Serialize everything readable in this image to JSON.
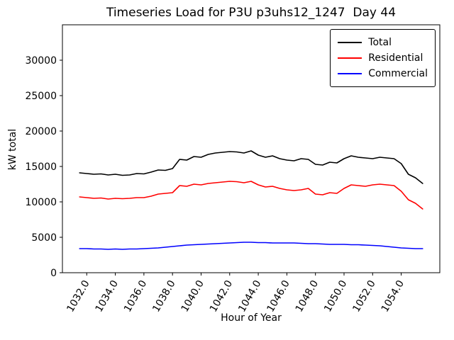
{
  "chart_data": {
    "type": "line",
    "title": "Timeseries Load for P3U p3uhs12_1247  Day 44",
    "xlabel": "Hour of Year",
    "ylabel": "kW total",
    "xlim": [
      1030.3,
      1056.7
    ],
    "ylim": [
      0,
      35000
    ],
    "grid": false,
    "legend_position": "upper right",
    "xtick_values": [
      1032,
      1034,
      1036,
      1038,
      1040,
      1042,
      1044,
      1046,
      1048,
      1050,
      1052,
      1054
    ],
    "xtick_labels": [
      "1032.0",
      "1034.0",
      "1036.0",
      "1038.0",
      "1040.0",
      "1042.0",
      "1044.0",
      "1046.0",
      "1048.0",
      "1050.0",
      "1052.0",
      "1054.0"
    ],
    "ytick_values": [
      0,
      5000,
      10000,
      15000,
      20000,
      25000,
      30000
    ],
    "ytick_labels": [
      "0",
      "5000",
      "10000",
      "15000",
      "20000",
      "25000",
      "30000"
    ],
    "x": [
      1031.5,
      1032.0,
      1032.5,
      1033.0,
      1033.5,
      1034.0,
      1034.5,
      1035.0,
      1035.5,
      1036.0,
      1036.5,
      1037.0,
      1037.5,
      1038.0,
      1038.5,
      1039.0,
      1039.5,
      1040.0,
      1040.5,
      1041.0,
      1041.5,
      1042.0,
      1042.5,
      1043.0,
      1043.5,
      1044.0,
      1044.5,
      1045.0,
      1045.5,
      1046.0,
      1046.5,
      1047.0,
      1047.5,
      1048.0,
      1048.5,
      1049.0,
      1049.5,
      1050.0,
      1050.5,
      1051.0,
      1051.5,
      1052.0,
      1052.5,
      1053.0,
      1053.5,
      1054.0,
      1054.5,
      1055.0,
      1055.5
    ],
    "series": [
      {
        "name": "Total",
        "color": "#000000",
        "values": [
          14100,
          14000,
          13900,
          13950,
          13800,
          13900,
          13750,
          13800,
          14000,
          13950,
          14200,
          14500,
          14450,
          14700,
          16000,
          15900,
          16400,
          16300,
          16700,
          16900,
          17000,
          17100,
          17050,
          16900,
          17200,
          16600,
          16300,
          16500,
          16100,
          15900,
          15800,
          16100,
          16000,
          15300,
          15200,
          15600,
          15500,
          16100,
          16500,
          16300,
          16200,
          16100,
          16300,
          16200,
          16100,
          15400,
          13900,
          13400,
          12600
        ]
      },
      {
        "name": "Residential",
        "color": "#ff0000",
        "values": [
          10700,
          10600,
          10500,
          10550,
          10400,
          10500,
          10450,
          10500,
          10600,
          10600,
          10800,
          11100,
          11200,
          11300,
          12300,
          12200,
          12500,
          12400,
          12600,
          12700,
          12800,
          12900,
          12850,
          12700,
          12900,
          12400,
          12100,
          12200,
          11900,
          11700,
          11600,
          11700,
          11900,
          11100,
          11000,
          11300,
          11200,
          11900,
          12400,
          12300,
          12200,
          12400,
          12500,
          12400,
          12300,
          11500,
          10300,
          9800,
          9000
        ]
      },
      {
        "name": "Commercial",
        "color": "#0000ff",
        "values": [
          3400,
          3400,
          3350,
          3350,
          3300,
          3350,
          3300,
          3350,
          3350,
          3400,
          3450,
          3500,
          3600,
          3700,
          3800,
          3900,
          3950,
          4000,
          4050,
          4100,
          4150,
          4200,
          4250,
          4300,
          4300,
          4250,
          4250,
          4200,
          4200,
          4200,
          4200,
          4150,
          4100,
          4100,
          4050,
          4000,
          4000,
          4000,
          3950,
          3950,
          3900,
          3850,
          3800,
          3700,
          3600,
          3500,
          3450,
          3400,
          3400
        ]
      }
    ]
  }
}
